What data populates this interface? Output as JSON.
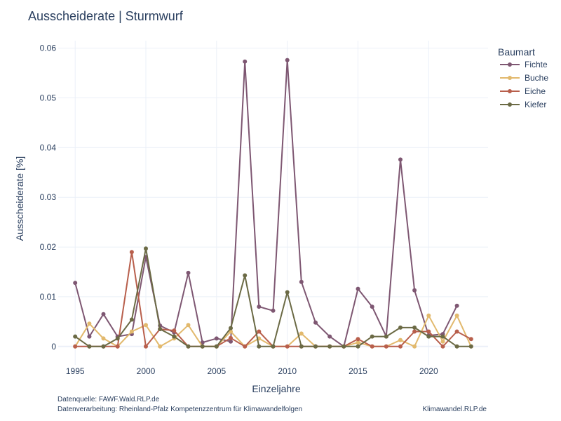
{
  "chart_data": {
    "type": "line",
    "title": "Ausscheiderate | Sturmwurf",
    "xlabel": "Einzeljahre",
    "ylabel": "Ausscheiderate [%]",
    "xlim": [
      1993.8,
      2024.2
    ],
    "ylim": [
      -0.0037,
      0.0615
    ],
    "x_ticks": [
      1995,
      2000,
      2005,
      2010,
      2015,
      2020
    ],
    "x_tick_labels": [
      "1995",
      "2000",
      "2005",
      "2010",
      "2015",
      "2020"
    ],
    "y_ticks": [
      0,
      0.01,
      0.02,
      0.03,
      0.04,
      0.05,
      0.06
    ],
    "y_tick_labels": [
      "0",
      "0.01",
      "0.02",
      "0.03",
      "0.04",
      "0.05",
      "0.06"
    ],
    "grid": true,
    "legend": {
      "title": "Baumart",
      "position": "right"
    },
    "x": [
      1995,
      1996,
      1997,
      1998,
      1999,
      2000,
      2001,
      2002,
      2003,
      2004,
      2005,
      2006,
      2007,
      2008,
      2009,
      2010,
      2011,
      2012,
      2013,
      2014,
      2015,
      2016,
      2017,
      2018,
      2019,
      2020,
      2021,
      2022,
      2023
    ],
    "series": [
      {
        "name": "Fichte",
        "color": "#7e5772",
        "values": [
          0.0128,
          0.002,
          0.0065,
          0.002,
          0.0025,
          0.018,
          0.0042,
          0.0028,
          0.0148,
          0.0008,
          0.0016,
          0.001,
          0.0573,
          0.008,
          0.0072,
          0.0576,
          0.013,
          0.0048,
          0.002,
          0.0,
          0.0116,
          0.008,
          0.002,
          0.0376,
          0.0113,
          0.0022,
          0.0025,
          0.0082,
          null
        ]
      },
      {
        "name": "Buche",
        "color": "#e2b96d",
        "values": [
          0.0,
          0.0046,
          0.0016,
          0.0,
          0.003,
          0.0043,
          0.0,
          0.0016,
          0.0043,
          0.0,
          0.0,
          0.003,
          0.0,
          0.0016,
          0.0,
          0.0,
          0.0026,
          0.0,
          0.0,
          0.0,
          0.0008,
          0.0,
          0.0,
          0.0013,
          0.0,
          0.0062,
          0.001,
          0.0062,
          0.0
        ]
      },
      {
        "name": "Eiche",
        "color": "#b85f4c",
        "values": [
          0.0,
          0.0,
          0.0,
          0.0,
          0.019,
          0.0,
          0.0035,
          0.0032,
          0.0,
          0.0,
          0.0,
          0.0017,
          0.0,
          0.003,
          0.0,
          0.0,
          0.0,
          0.0,
          0.0,
          0.0,
          0.0015,
          0.0,
          0.0,
          0.0,
          0.003,
          0.003,
          0.0,
          0.003,
          0.0015
        ]
      },
      {
        "name": "Kiefer",
        "color": "#6b6a45",
        "values": [
          0.002,
          0.0,
          0.0,
          0.0016,
          0.0054,
          0.0197,
          0.0035,
          0.002,
          0.0,
          0.0,
          0.0,
          0.0037,
          0.0143,
          0.0,
          0.0,
          0.0109,
          0.0,
          0.0,
          0.0,
          0.0,
          0.0,
          0.002,
          0.002,
          0.0038,
          0.0038,
          0.002,
          0.002,
          0.0,
          0.0
        ]
      }
    ]
  },
  "footer": {
    "source": "Datenquelle: FAWF.Wald.RLP.de",
    "processing": "Datenverarbeitung: Rheinland-Pfalz Kompetenzzentrum für Klimawandelfolgen",
    "brand": "Klimawandel.RLP.de"
  }
}
